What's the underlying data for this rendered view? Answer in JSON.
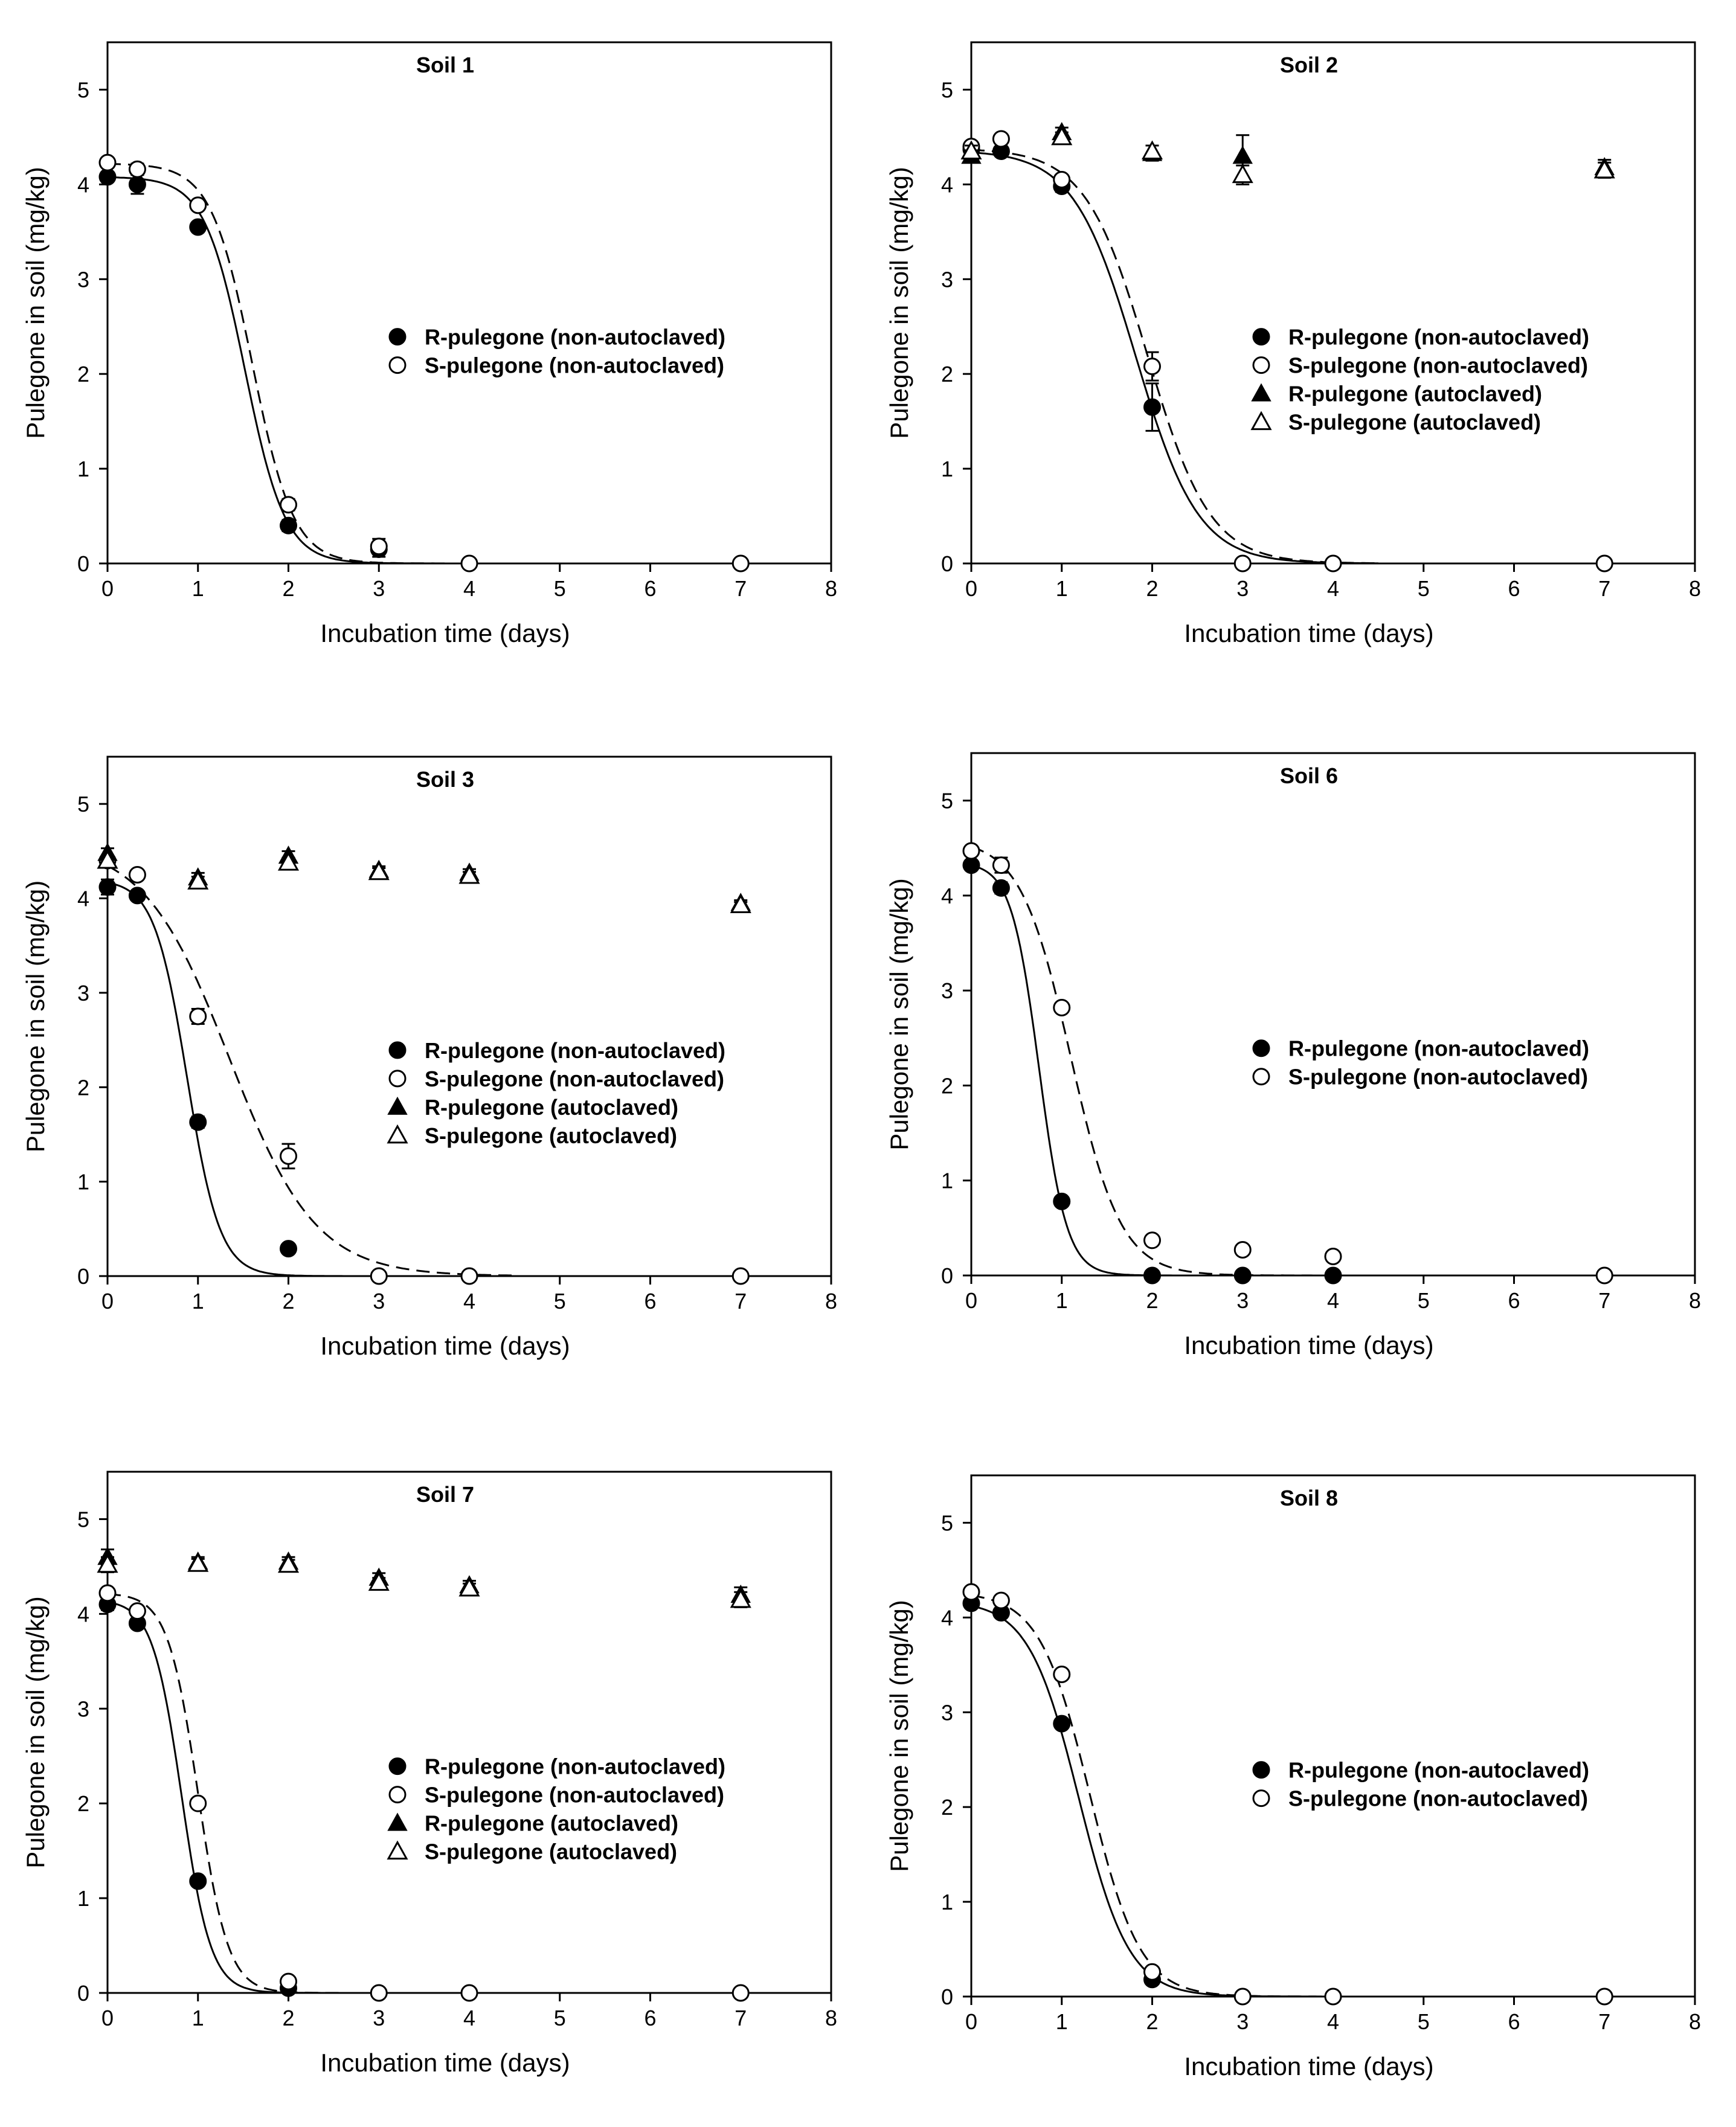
{
  "chart_data": [
    {
      "type": "scatter",
      "title": "Soil 1",
      "xlabel": "Incubation time (days)",
      "ylabel": "Pulegone in soil (mg/kg)",
      "xlim": [
        0,
        8
      ],
      "ylim": [
        0,
        5.5
      ],
      "xticks": [
        0,
        1,
        2,
        3,
        4,
        5,
        6,
        7,
        8
      ],
      "yticks": [
        0,
        1,
        2,
        3,
        4,
        5
      ],
      "legend_position": "center-right",
      "series": [
        {
          "name": "R-pulegone (non-autoclaved)",
          "marker": "filled-circle",
          "curve": "solid",
          "x": [
            0,
            0.33,
            1,
            2,
            3
          ],
          "y": [
            4.08,
            4.0,
            3.55,
            0.4,
            0.15
          ],
          "err": [
            0.05,
            0.1,
            0.05,
            0.06,
            0.08
          ],
          "fit": {
            "a": 4.08,
            "x0": 1.52,
            "k": 4.5
          }
        },
        {
          "name": "S-pulegone (non-autoclaved)",
          "marker": "open-circle",
          "curve": "dashed",
          "x": [
            0,
            0.33,
            1,
            2,
            3,
            4,
            7
          ],
          "y": [
            4.23,
            4.16,
            3.78,
            0.62,
            0.18,
            0.0,
            0.0
          ],
          "err": [
            0.03,
            0.06,
            0.04,
            0.06,
            0.08,
            0,
            0
          ],
          "fit": {
            "a": 4.22,
            "x0": 1.6,
            "k": 4.4
          }
        }
      ]
    },
    {
      "type": "scatter",
      "title": "Soil 2",
      "xlabel": "Incubation time (days)",
      "ylabel": "Pulegone in soil (mg/kg)",
      "xlim": [
        0,
        8
      ],
      "ylim": [
        0,
        5.5
      ],
      "xticks": [
        0,
        1,
        2,
        3,
        4,
        5,
        6,
        7,
        8
      ],
      "yticks": [
        0,
        1,
        2,
        3,
        4,
        5
      ],
      "legend_position": "center-right",
      "series": [
        {
          "name": "R-pulegone (non-autoclaved)",
          "marker": "filled-circle",
          "curve": "solid",
          "x": [
            0,
            0.33,
            1,
            2
          ],
          "y": [
            4.37,
            4.35,
            3.98,
            1.65
          ],
          "err": [
            0.05,
            0.04,
            0.06,
            0.25
          ],
          "fit": {
            "a": 4.36,
            "x0": 1.82,
            "k": 2.9
          }
        },
        {
          "name": "S-pulegone (non-autoclaved)",
          "marker": "open-circle",
          "curve": "dashed",
          "x": [
            0,
            0.33,
            1,
            2,
            3,
            4,
            7
          ],
          "y": [
            4.4,
            4.48,
            4.05,
            2.08,
            0.0,
            0.0,
            0.0
          ],
          "err": [
            0.04,
            0.04,
            0.05,
            0.15,
            0,
            0,
            0
          ],
          "fit": {
            "a": 4.38,
            "x0": 1.95,
            "k": 2.9
          }
        },
        {
          "name": "R-pulegone (autoclaved)",
          "marker": "filled-triangle",
          "curve": "none",
          "x": [
            0,
            1,
            2,
            3,
            7
          ],
          "y": [
            4.3,
            4.55,
            4.33,
            4.3,
            4.18
          ],
          "err": [
            0.06,
            0.05,
            0.08,
            0.22,
            0.08
          ]
        },
        {
          "name": "S-pulegone (autoclaved)",
          "marker": "open-triangle",
          "curve": "none",
          "x": [
            0,
            1,
            2,
            3,
            7
          ],
          "y": [
            4.35,
            4.5,
            4.35,
            4.1,
            4.15
          ],
          "err": [
            0.06,
            0.05,
            0.06,
            0.1,
            0.08
          ]
        }
      ]
    },
    {
      "type": "scatter",
      "title": "Soil 3",
      "xlabel": "Incubation time (days)",
      "ylabel": "Pulegone in soil (mg/kg)",
      "xlim": [
        0,
        8
      ],
      "ylim": [
        0,
        5.5
      ],
      "xticks": [
        0,
        1,
        2,
        3,
        4,
        5,
        6,
        7,
        8
      ],
      "yticks": [
        0,
        1,
        2,
        3,
        4,
        5
      ],
      "legend_position": "center-right",
      "series": [
        {
          "name": "R-pulegone (non-autoclaved)",
          "marker": "filled-circle",
          "curve": "solid",
          "x": [
            0,
            0.33,
            1,
            2
          ],
          "y": [
            4.12,
            4.03,
            1.63,
            0.29
          ],
          "err": [
            0.08,
            0.05,
            0.06,
            0.05
          ],
          "fit": {
            "a": 4.2,
            "x0": 0.88,
            "k": 5.5
          }
        },
        {
          "name": "S-pulegone (non-autoclaved)",
          "marker": "open-circle",
          "curve": "dashed",
          "x": [
            0,
            0.33,
            1,
            2,
            3,
            4,
            7
          ],
          "y": [
            4.4,
            4.25,
            2.75,
            1.27,
            0.0,
            0.0,
            0.0
          ],
          "err": [
            0.05,
            0.04,
            0.08,
            0.13,
            0,
            0,
            0
          ],
          "fit": {
            "a": 4.6,
            "x0": 1.35,
            "k": 2.1
          }
        },
        {
          "name": "R-pulegone (autoclaved)",
          "marker": "filled-triangle",
          "curve": "none",
          "x": [
            0,
            1,
            2,
            3,
            4,
            7
          ],
          "y": [
            4.48,
            4.22,
            4.45,
            4.3,
            4.27,
            3.95
          ],
          "err": [
            0.05,
            0.05,
            0.05,
            0.04,
            0.04,
            0.03
          ]
        },
        {
          "name": "S-pulegone (autoclaved)",
          "marker": "open-triangle",
          "curve": "none",
          "x": [
            0,
            1,
            2,
            3,
            4,
            7
          ],
          "y": [
            4.4,
            4.18,
            4.38,
            4.28,
            4.24,
            3.93
          ],
          "err": [
            0.05,
            0.05,
            0.05,
            0.04,
            0.04,
            0.03
          ]
        }
      ]
    },
    {
      "type": "scatter",
      "title": "Soil 6",
      "xlabel": "Incubation time (days)",
      "ylabel": "Pulegone in soil (mg/kg)",
      "xlim": [
        0,
        8
      ],
      "ylim": [
        0,
        5.5
      ],
      "xticks": [
        0,
        1,
        2,
        3,
        4,
        5,
        6,
        7,
        8
      ],
      "yticks": [
        0,
        1,
        2,
        3,
        4,
        5
      ],
      "legend_position": "center-right",
      "series": [
        {
          "name": "R-pulegone (non-autoclaved)",
          "marker": "filled-circle",
          "curve": "solid",
          "x": [
            0,
            0.33,
            1,
            2,
            3,
            4
          ],
          "y": [
            4.32,
            4.08,
            0.78,
            0.0,
            0.0,
            0.0
          ],
          "err": [
            0.05,
            0.06,
            0.05,
            0,
            0,
            0
          ],
          "fit": {
            "a": 4.35,
            "x0": 0.75,
            "k": 6.5
          }
        },
        {
          "name": "S-pulegone (non-autoclaved)",
          "marker": "open-circle",
          "curve": "dashed",
          "x": [
            0,
            0.33,
            1,
            2,
            3,
            4,
            7
          ],
          "y": [
            4.47,
            4.32,
            2.82,
            0.37,
            0.27,
            0.2,
            0.0
          ],
          "err": [
            0.04,
            0.08,
            0.04,
            0.05,
            0.03,
            0.03,
            0
          ],
          "fit": {
            "a": 4.6,
            "x0": 1.1,
            "k": 3.6
          }
        }
      ]
    },
    {
      "type": "scatter",
      "title": "Soil 7",
      "xlabel": "Incubation time (days)",
      "ylabel": "Pulegone in soil (mg/kg)",
      "xlim": [
        0,
        8
      ],
      "ylim": [
        0,
        5.5
      ],
      "xticks": [
        0,
        1,
        2,
        3,
        4,
        5,
        6,
        7,
        8
      ],
      "yticks": [
        0,
        1,
        2,
        3,
        4,
        5
      ],
      "legend_position": "center-right",
      "series": [
        {
          "name": "R-pulegone (non-autoclaved)",
          "marker": "filled-circle",
          "curve": "solid",
          "x": [
            0,
            0.33,
            1,
            2
          ],
          "y": [
            4.1,
            3.9,
            1.18,
            0.05
          ],
          "err": [
            0.06,
            0.05,
            0.05,
            0.03
          ],
          "fit": {
            "a": 4.15,
            "x0": 0.82,
            "k": 6.2
          }
        },
        {
          "name": "S-pulegone (non-autoclaved)",
          "marker": "open-circle",
          "curve": "dashed",
          "x": [
            0,
            0.33,
            1,
            2,
            3,
            4,
            7
          ],
          "y": [
            4.22,
            4.03,
            2.0,
            0.12,
            0.0,
            0.0,
            0.0
          ],
          "err": [
            0.05,
            0.05,
            0.04,
            0.03,
            0,
            0,
            0
          ],
          "fit": {
            "a": 4.22,
            "x0": 1.0,
            "k": 6.0
          }
        },
        {
          "name": "R-pulegone (autoclaved)",
          "marker": "filled-triangle",
          "curve": "none",
          "x": [
            0,
            1,
            2,
            3,
            4,
            7
          ],
          "y": [
            4.6,
            4.55,
            4.55,
            4.38,
            4.3,
            4.2
          ],
          "err": [
            0.08,
            0.05,
            0.05,
            0.05,
            0.05,
            0.08
          ]
        },
        {
          "name": "S-pulegone (autoclaved)",
          "marker": "open-triangle",
          "curve": "none",
          "x": [
            0,
            1,
            2,
            3,
            4,
            7
          ],
          "y": [
            4.52,
            4.53,
            4.52,
            4.33,
            4.27,
            4.15
          ],
          "err": [
            0.08,
            0.05,
            0.05,
            0.05,
            0.05,
            0.08
          ]
        }
      ]
    },
    {
      "type": "scatter",
      "title": "Soil 8",
      "xlabel": "Incubation time (days)",
      "ylabel": "Pulegone in soil (mg/kg)",
      "xlim": [
        0,
        8
      ],
      "ylim": [
        0,
        5.5
      ],
      "xticks": [
        0,
        1,
        2,
        3,
        4,
        5,
        6,
        7,
        8
      ],
      "yticks": [
        0,
        1,
        2,
        3,
        4,
        5
      ],
      "legend_position": "center-right",
      "series": [
        {
          "name": "R-pulegone (non-autoclaved)",
          "marker": "filled-circle",
          "curve": "solid",
          "x": [
            0,
            0.33,
            1,
            2
          ],
          "y": [
            4.15,
            4.05,
            2.88,
            0.18
          ],
          "err": [
            0.05,
            0.04,
            0.05,
            0.03
          ],
          "fit": {
            "a": 4.18,
            "x0": 1.19,
            "k": 3.6
          }
        },
        {
          "name": "S-pulegone (non-autoclaved)",
          "marker": "open-circle",
          "curve": "dashed",
          "x": [
            0,
            0.33,
            1,
            2,
            3,
            4,
            7
          ],
          "y": [
            4.27,
            4.18,
            3.4,
            0.26,
            0.0,
            0.0,
            0.0
          ],
          "err": [
            0.04,
            0.04,
            0.04,
            0.04,
            0,
            0,
            0
          ],
          "fit": {
            "a": 4.27,
            "x0": 1.31,
            "k": 3.6
          }
        }
      ]
    }
  ]
}
